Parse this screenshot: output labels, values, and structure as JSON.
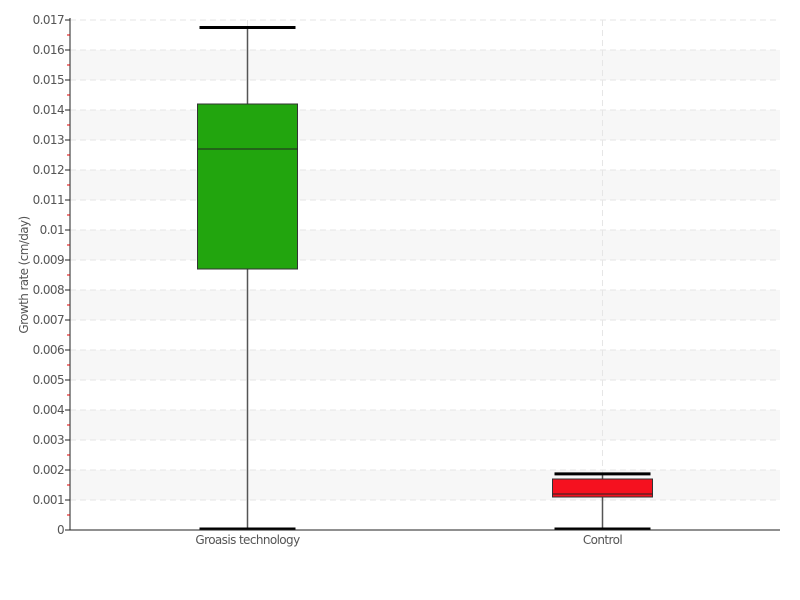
{
  "chart_data": {
    "type": "box",
    "title": "",
    "xlabel": "",
    "ylabel": "Growth rate (cm/day)",
    "ylim": [
      0,
      0.017
    ],
    "ytick_step": 0.001,
    "yticks": [
      "0",
      "0.001",
      "0.002",
      "0.003",
      "0.004",
      "0.005",
      "0.006",
      "0.007",
      "0.008",
      "0.009",
      "0.01",
      "0.011",
      "0.012",
      "0.013",
      "0.014",
      "0.015",
      "0.016",
      "0.017"
    ],
    "grid": true,
    "categories": [
      "Groasis technology",
      "Control"
    ],
    "series": [
      {
        "category": "Groasis technology",
        "min": 0.0,
        "q1": 0.0087,
        "median": 0.0127,
        "q3": 0.0142,
        "max": 0.01675,
        "color": "#22a50e"
      },
      {
        "category": "Control",
        "min": 0.0,
        "q1": 0.0011,
        "median": 0.0012,
        "q3": 0.0017,
        "max": 0.00187,
        "color": "#f5111f"
      }
    ]
  }
}
